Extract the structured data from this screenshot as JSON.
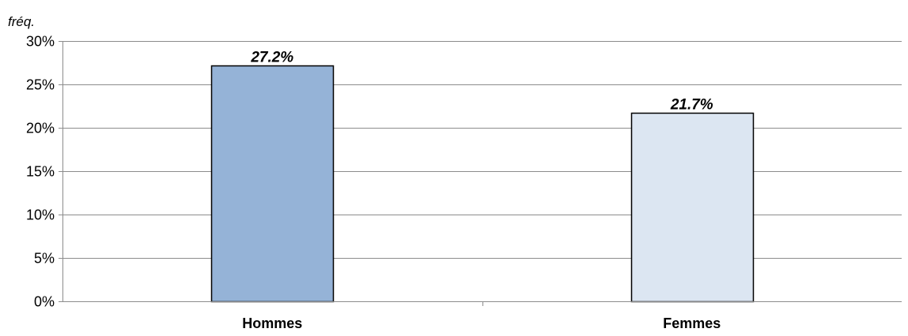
{
  "chart_data": {
    "type": "bar",
    "title": "",
    "xlabel": "",
    "ylabel": "fréq.",
    "ylim": [
      0,
      30
    ],
    "yticks": [
      0,
      5,
      10,
      15,
      20,
      25,
      30
    ],
    "ytick_labels": [
      "0%",
      "5%",
      "10%",
      "15%",
      "20%",
      "25%",
      "30%"
    ],
    "categories": [
      "Hommes",
      "Femmes"
    ],
    "values": [
      27.2,
      21.7
    ],
    "data_labels": [
      "27.2%",
      "21.7%"
    ],
    "bar_colors": [
      "#95b3d7",
      "#dce6f2"
    ],
    "grid": true,
    "legend": "none"
  }
}
